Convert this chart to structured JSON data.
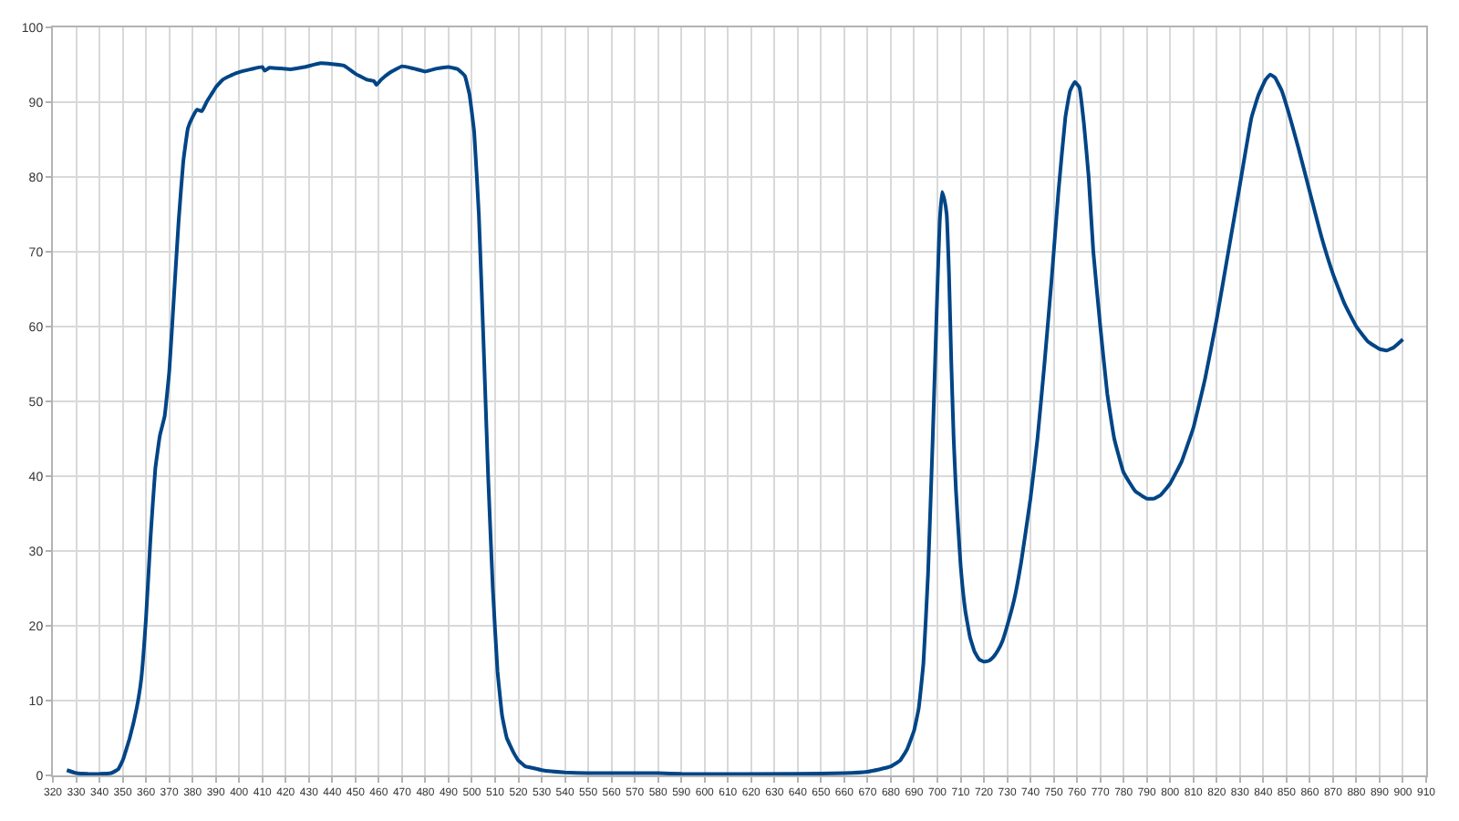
{
  "chart_data": {
    "type": "line",
    "grid": true,
    "marker": "none",
    "line_style": "solid",
    "xlim": [
      320,
      910
    ],
    "ylim": [
      0,
      100
    ],
    "xticks": [
      320,
      330,
      340,
      350,
      360,
      370,
      380,
      390,
      400,
      410,
      420,
      430,
      440,
      450,
      460,
      470,
      480,
      490,
      500,
      510,
      520,
      530,
      540,
      550,
      560,
      570,
      580,
      590,
      600,
      610,
      620,
      630,
      640,
      650,
      660,
      670,
      680,
      690,
      700,
      710,
      720,
      730,
      740,
      750,
      760,
      770,
      780,
      790,
      800,
      810,
      820,
      830,
      840,
      850,
      860,
      870,
      880,
      890,
      900,
      910
    ],
    "yticks": [
      0,
      10,
      20,
      30,
      40,
      50,
      60,
      70,
      80,
      90,
      100
    ],
    "series": [
      {
        "color": "#004586",
        "x": [
          326,
          330,
          335,
          340,
          345,
          348,
          350,
          353,
          356,
          358,
          360,
          362,
          364,
          366,
          368,
          370,
          372,
          374,
          376,
          378,
          380,
          382,
          384,
          386,
          388,
          390,
          393,
          396,
          400,
          405,
          410,
          411,
          413,
          418,
          422,
          428,
          435,
          440,
          445,
          450,
          455,
          458,
          459,
          461,
          465,
          470,
          475,
          480,
          485,
          490,
          494,
          497,
          499,
          501,
          503,
          505,
          507,
          509,
          511,
          513,
          515,
          518,
          520,
          523,
          526,
          530,
          540,
          550,
          580,
          590,
          640,
          660,
          670,
          675,
          680,
          684,
          687,
          690,
          692,
          694,
          696,
          698,
          700,
          701,
          702,
          703,
          704,
          705,
          706,
          707,
          708,
          710,
          712,
          714,
          716,
          718,
          720,
          722,
          724,
          726,
          728,
          730,
          733,
          736,
          740,
          743,
          746,
          749,
          752,
          755,
          757,
          759,
          761,
          763,
          765,
          767,
          770,
          773,
          776,
          780,
          785,
          790,
          793,
          796,
          800,
          805,
          810,
          815,
          820,
          825,
          830,
          835,
          838,
          841,
          843,
          845,
          848,
          851,
          855,
          860,
          865,
          870,
          875,
          880,
          885,
          890,
          893,
          896,
          900
        ],
        "values": [
          0.7,
          0.3,
          0.2,
          0.2,
          0.3,
          0.8,
          2,
          5,
          9,
          13,
          21,
          32,
          41,
          45.5,
          48,
          54,
          64,
          74,
          82,
          86.5,
          88,
          89,
          88.8,
          90,
          91,
          92,
          93,
          93.5,
          94,
          94.4,
          94.7,
          94.2,
          94.6,
          94.5,
          94.4,
          94.7,
          95.2,
          95.1,
          94.9,
          93.8,
          93,
          92.8,
          92.3,
          93,
          94,
          94.8,
          94.5,
          94.1,
          94.5,
          94.7,
          94.4,
          93.5,
          91,
          86,
          75,
          58,
          40,
          25,
          14,
          8,
          5,
          3,
          2,
          1.2,
          1,
          0.7,
          0.4,
          0.3,
          0.3,
          0.2,
          0.2,
          0.3,
          0.5,
          0.8,
          1.2,
          2,
          3.5,
          6,
          9,
          15,
          27,
          45,
          65,
          74,
          78,
          77,
          75,
          67,
          55,
          45,
          38,
          28,
          22,
          18.5,
          16.5,
          15.5,
          15.2,
          15.3,
          15.8,
          16.7,
          18,
          20,
          23.5,
          28.5,
          37,
          45,
          55,
          66,
          78,
          88,
          91.5,
          92.7,
          92,
          87,
          80,
          70,
          60,
          51,
          45,
          40.5,
          38,
          37,
          37,
          37.5,
          39,
          42,
          46.5,
          53,
          61,
          70,
          79,
          88,
          91,
          93,
          93.7,
          93.3,
          91.5,
          88.5,
          84,
          78,
          72,
          67,
          63,
          60,
          58,
          57,
          56.8,
          57.2,
          58.3
        ]
      }
    ]
  }
}
